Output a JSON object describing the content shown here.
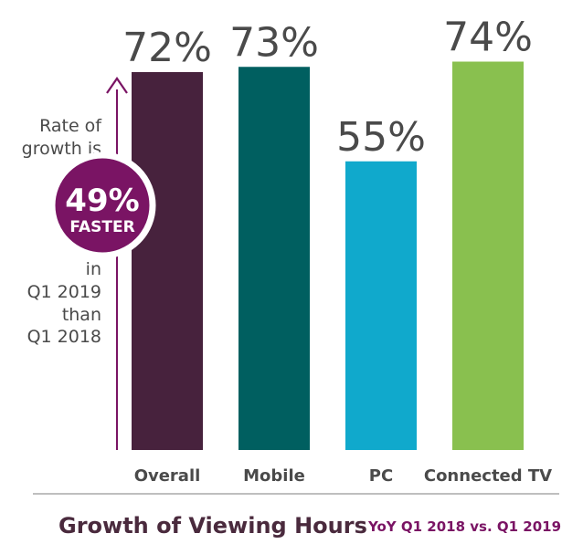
{
  "chart_data": {
    "type": "bar",
    "categories": [
      "Overall",
      "Mobile",
      "PC",
      "Connected TV"
    ],
    "values": [
      72,
      73,
      55,
      74
    ],
    "value_labels": [
      "72%",
      "73%",
      "55%",
      "74%"
    ],
    "colors": [
      "#47223d",
      "#005f60",
      "#10a9cc",
      "#89c04f"
    ],
    "title": "Growth of Viewing Hours",
    "subtitle": "YoY Q1 2018 vs. Q1 2019",
    "xlabel": "",
    "ylabel": "",
    "ylim": [
      0,
      100
    ],
    "grid": false,
    "legend": "none"
  },
  "callout": {
    "lines_top": [
      "Rate of",
      "growth is"
    ],
    "badge_value": "49%",
    "badge_label": "FASTER",
    "lines_bottom": [
      "in",
      "Q1 2019",
      "than",
      "Q1 2018"
    ]
  },
  "colors": {
    "accent": "#7a1464",
    "text": "#4a4a4a",
    "title": "#4a2a3d",
    "divider": "#aaaaaa"
  }
}
